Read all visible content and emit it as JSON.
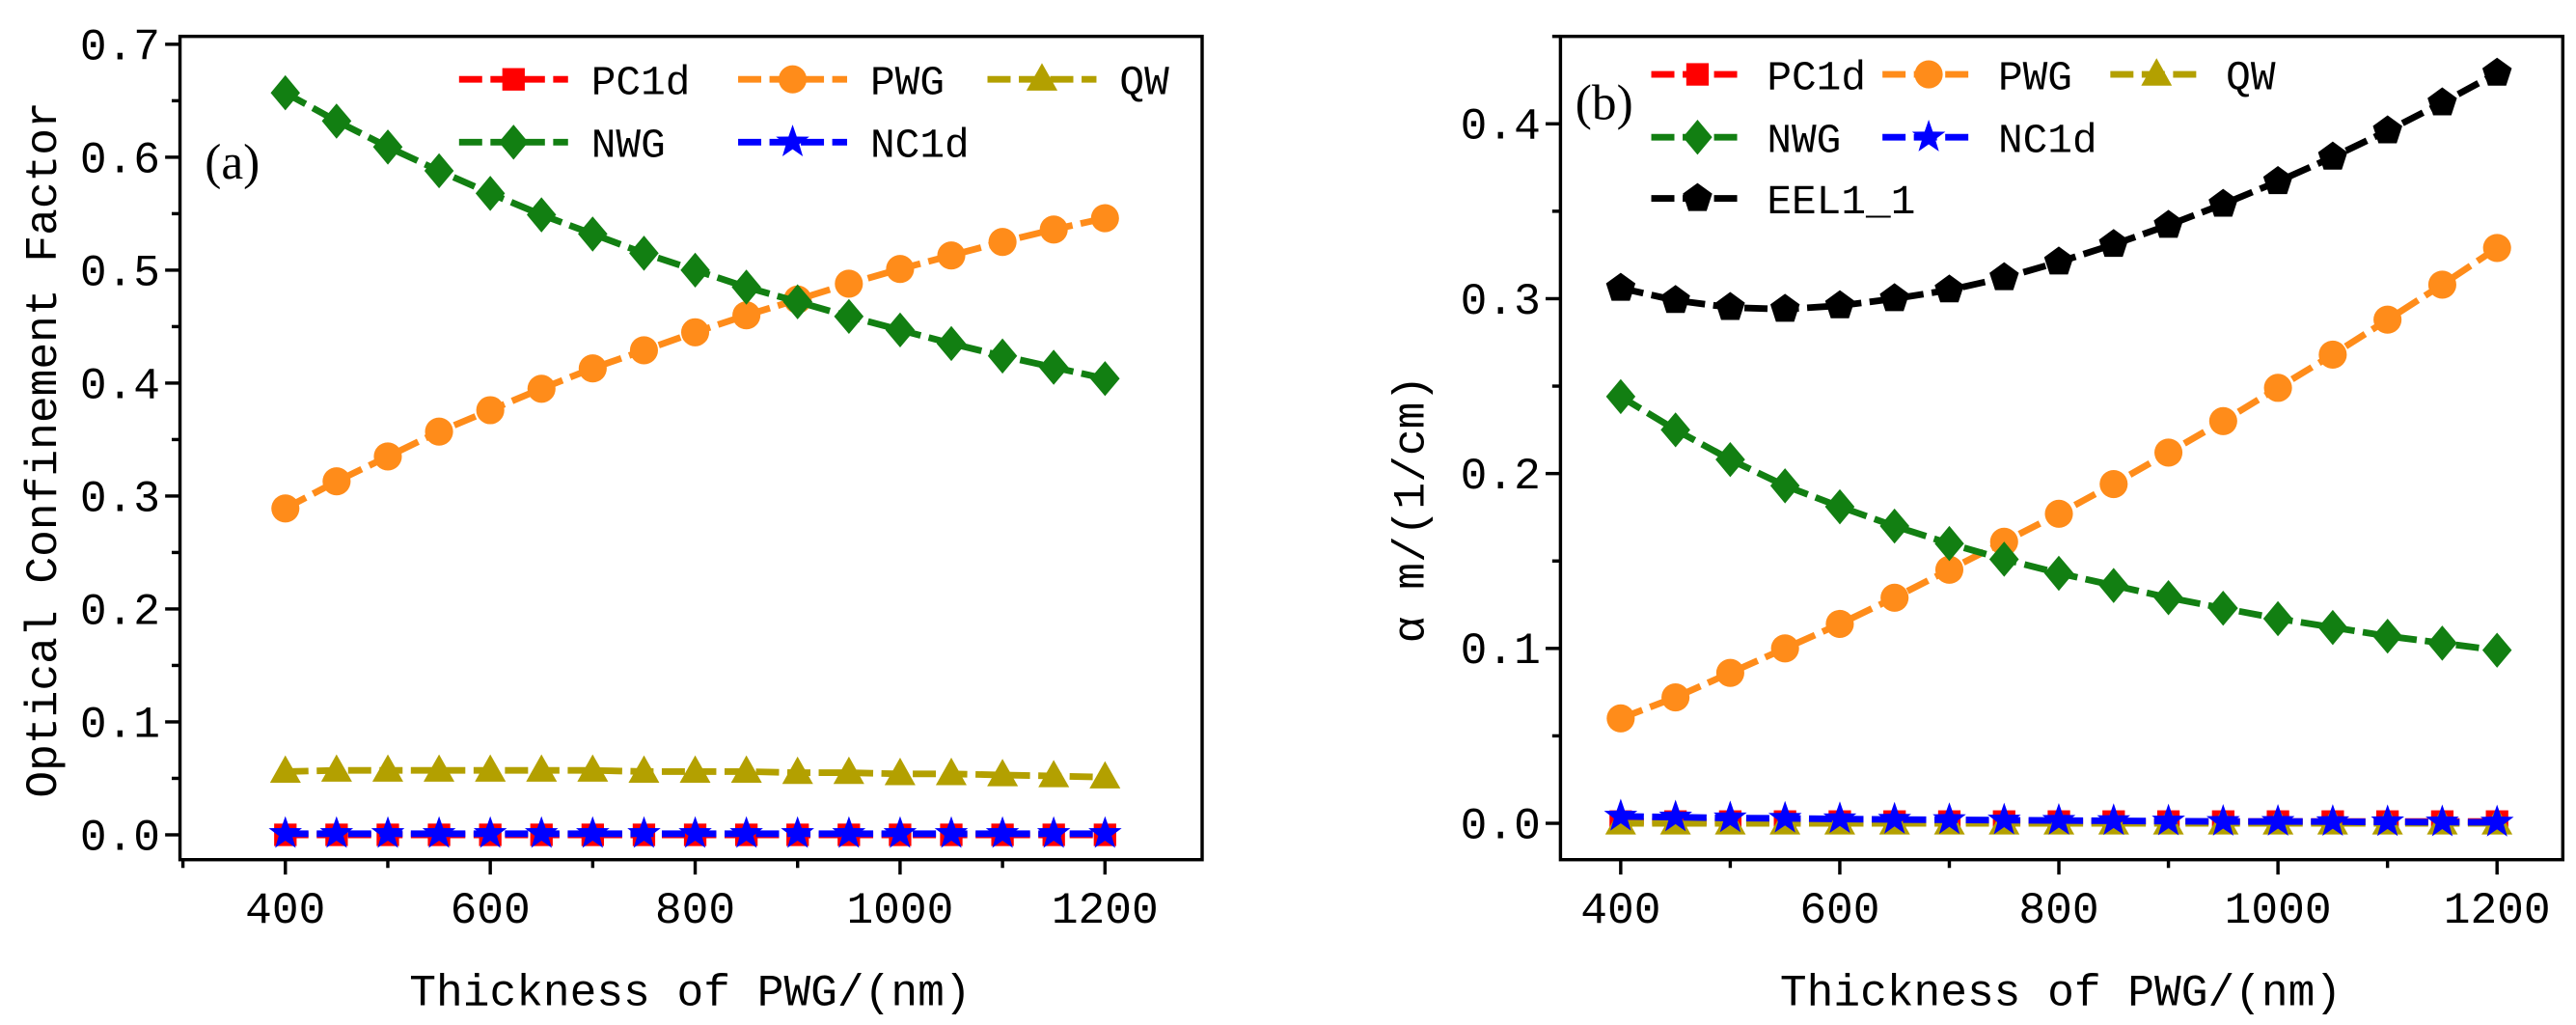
{
  "chart_data": [
    {
      "type": "line",
      "panel_label": "(a)",
      "xlabel": "Thickness of PWG/(nm)",
      "ylabel": "Optical Confinement Factor",
      "xlim": [
        360,
        1290
      ],
      "ylim": [
        -0.022,
        0.707
      ],
      "xticks": [
        400,
        600,
        800,
        1000,
        1200
      ],
      "yticks": [
        0.0,
        0.1,
        0.2,
        0.3,
        0.4,
        0.5,
        0.6,
        0.7
      ],
      "ytick_labels": [
        "0.0",
        "0.1",
        "0.2",
        "0.3",
        "0.4",
        "0.5",
        "0.6",
        "0.7"
      ],
      "x": [
        400,
        450,
        500,
        550,
        600,
        650,
        700,
        750,
        800,
        850,
        900,
        950,
        1000,
        1050,
        1100,
        1150,
        1200
      ],
      "legend_position": "top",
      "series": [
        {
          "name": "PC1d",
          "color": "#ff0000",
          "marker": "square",
          "values": [
            0,
            0,
            0,
            0,
            0,
            0,
            0,
            0,
            0,
            0,
            0,
            0,
            0,
            0,
            0,
            0,
            0
          ]
        },
        {
          "name": "PWG",
          "color": "#ff8c1a",
          "marker": "circle",
          "values": [
            0.289,
            0.313,
            0.335,
            0.357,
            0.376,
            0.395,
            0.413,
            0.429,
            0.445,
            0.46,
            0.474,
            0.488,
            0.501,
            0.513,
            0.525,
            0.536,
            0.546
          ]
        },
        {
          "name": "QW",
          "color": "#b3a000",
          "marker": "triangle",
          "values": [
            0.056,
            0.057,
            0.057,
            0.057,
            0.057,
            0.057,
            0.057,
            0.056,
            0.056,
            0.056,
            0.055,
            0.055,
            0.054,
            0.054,
            0.053,
            0.052,
            0.051
          ]
        },
        {
          "name": "NWG",
          "color": "#127f12",
          "marker": "diamond",
          "values": [
            0.657,
            0.632,
            0.609,
            0.588,
            0.568,
            0.549,
            0.532,
            0.515,
            0.5,
            0.485,
            0.472,
            0.459,
            0.447,
            0.435,
            0.424,
            0.414,
            0.404
          ]
        },
        {
          "name": "NC1d",
          "color": "#0000ff",
          "marker": "star",
          "values": [
            0.001,
            0.001,
            0.001,
            0.001,
            0.001,
            0.001,
            0.001,
            0.001,
            0.001,
            0.001,
            0.001,
            0.001,
            0.001,
            0.001,
            0.001,
            0.001,
            0.001
          ]
        }
      ]
    },
    {
      "type": "line",
      "panel_label": "(b)",
      "xlabel": "Thickness of PWG/(nm)",
      "ylabel": "α m/(1/cm)",
      "xlim": [
        345,
        1260
      ],
      "ylim": [
        -0.0208,
        0.45
      ],
      "xticks": [
        400,
        600,
        800,
        1000,
        1200
      ],
      "yticks": [
        0.0,
        0.1,
        0.2,
        0.3,
        0.4
      ],
      "ytick_labels": [
        "0.0",
        "0.1",
        "0.2",
        "0.3",
        "0.4"
      ],
      "x": [
        400,
        450,
        500,
        550,
        600,
        650,
        700,
        750,
        800,
        850,
        900,
        950,
        1000,
        1050,
        1100,
        1150,
        1200
      ],
      "legend_position": "top-left",
      "series": [
        {
          "name": "PC1d",
          "color": "#ff0000",
          "marker": "square",
          "values": [
            0.001,
            0.001,
            0.001,
            0.001,
            0.001,
            0.001,
            0.001,
            0.001,
            0.001,
            0.001,
            0.001,
            0.001,
            0.001,
            0.001,
            0.001,
            0.001,
            0.001
          ]
        },
        {
          "name": "PWG",
          "color": "#ff8c1a",
          "marker": "circle",
          "values": [
            0.06,
            0.072,
            0.086,
            0.1,
            0.114,
            0.129,
            0.145,
            0.161,
            0.177,
            0.194,
            0.212,
            0.23,
            0.249,
            0.268,
            0.288,
            0.308,
            0.329
          ]
        },
        {
          "name": "QW",
          "color": "#b3a000",
          "marker": "triangle",
          "values": [
            0.0,
            0.0,
            0.0,
            0.0,
            0.0,
            0.0,
            0.0,
            0.0,
            0.0,
            0.0,
            0.0,
            0.0,
            0.0,
            0.0,
            0.0,
            0.0,
            0.0
          ]
        },
        {
          "name": "NWG",
          "color": "#127f12",
          "marker": "diamond",
          "values": [
            0.244,
            0.225,
            0.208,
            0.193,
            0.181,
            0.17,
            0.16,
            0.151,
            0.143,
            0.136,
            0.129,
            0.123,
            0.117,
            0.112,
            0.107,
            0.103,
            0.099
          ]
        },
        {
          "name": "NC1d",
          "color": "#0000ff",
          "marker": "star",
          "values": [
            0.004,
            0.0035,
            0.003,
            0.0028,
            0.0025,
            0.0022,
            0.002,
            0.0018,
            0.0016,
            0.0014,
            0.0012,
            0.001,
            0.001,
            0.0009,
            0.0008,
            0.0007,
            0.0006
          ]
        },
        {
          "name": "EEL1_1",
          "color": "#000000",
          "marker": "pentagon",
          "values": [
            0.306,
            0.299,
            0.295,
            0.294,
            0.296,
            0.3,
            0.305,
            0.312,
            0.321,
            0.331,
            0.342,
            0.354,
            0.367,
            0.381,
            0.396,
            0.412,
            0.429
          ]
        }
      ]
    }
  ]
}
